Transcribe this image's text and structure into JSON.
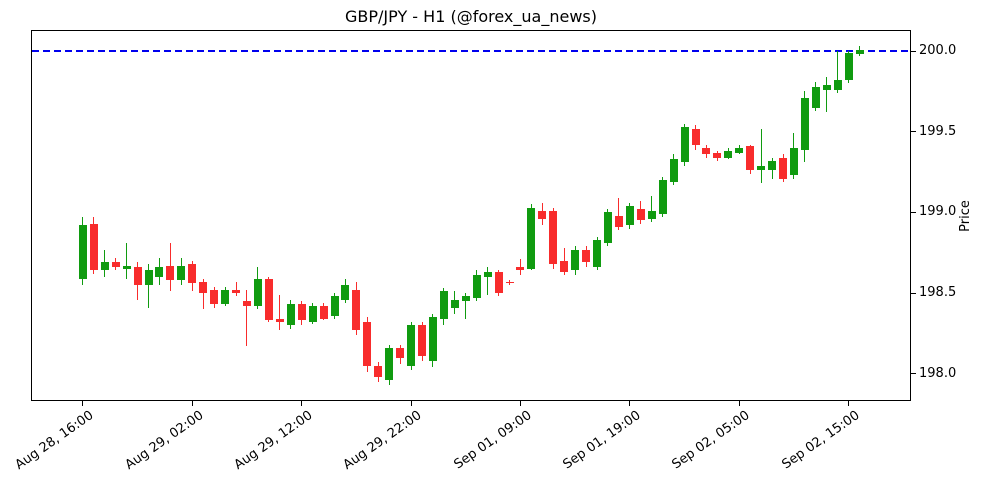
{
  "title": "GBP/JPY - H1 (@forex_ua_news)",
  "y_axis": {
    "label": "Price",
    "ticks": [
      "198.0",
      "198.5",
      "199.0",
      "199.5",
      "200.0"
    ],
    "min": 197.834,
    "max": 200.131
  },
  "x_axis": {
    "ticks": [
      {
        "i": 0,
        "label": "Aug 28, 16:00"
      },
      {
        "i": 10,
        "label": "Aug 29, 02:00"
      },
      {
        "i": 20,
        "label": "Aug 29, 12:00"
      },
      {
        "i": 30,
        "label": "Aug 29, 22:00"
      },
      {
        "i": 40,
        "label": "Sep 01, 09:00"
      },
      {
        "i": 50,
        "label": "Sep 01, 19:00"
      },
      {
        "i": 60,
        "label": "Sep 02, 05:00"
      },
      {
        "i": 70,
        "label": "Sep 02, 15:00"
      }
    ],
    "min": -4.7,
    "max": 75.7
  },
  "hline": {
    "value": 200.0,
    "color": "#0000ee",
    "style": "dashed"
  },
  "colors": {
    "up": "#109b10",
    "down": "#f82c2c",
    "spine": "#000000"
  },
  "chart_data": {
    "type": "candlestick",
    "title": "GBP/JPY - H1 (@forex_ua_news)",
    "ylabel": "Price",
    "timeframe": "H1",
    "grid": false,
    "hline": 200.0,
    "ylim": [
      197.834,
      200.131
    ],
    "x": [
      "Aug 28 16:00",
      "Aug 28 17:00",
      "Aug 28 18:00",
      "Aug 28 19:00",
      "Aug 28 20:00",
      "Aug 28 21:00",
      "Aug 28 22:00",
      "Aug 28 23:00",
      "Aug 29 00:00",
      "Aug 29 01:00",
      "Aug 29 02:00",
      "Aug 29 03:00",
      "Aug 29 04:00",
      "Aug 29 05:00",
      "Aug 29 06:00",
      "Aug 29 07:00",
      "Aug 29 08:00",
      "Aug 29 09:00",
      "Aug 29 10:00",
      "Aug 29 11:00",
      "Aug 29 12:00",
      "Aug 29 13:00",
      "Aug 29 14:00",
      "Aug 29 15:00",
      "Aug 29 16:00",
      "Aug 29 17:00",
      "Aug 29 18:00",
      "Aug 29 19:00",
      "Aug 29 20:00",
      "Aug 29 21:00",
      "Aug 29 22:00",
      "Sep 01 00:00",
      "Sep 01 01:00",
      "Sep 01 02:00",
      "Sep 01 03:00",
      "Sep 01 04:00",
      "Sep 01 05:00",
      "Sep 01 06:00",
      "Sep 01 07:00",
      "Sep 01 08:00",
      "Sep 01 09:00",
      "Sep 01 10:00",
      "Sep 01 11:00",
      "Sep 01 12:00",
      "Sep 01 13:00",
      "Sep 01 14:00",
      "Sep 01 15:00",
      "Sep 01 16:00",
      "Sep 01 17:00",
      "Sep 01 18:00",
      "Sep 01 19:00",
      "Sep 01 20:00",
      "Sep 01 21:00",
      "Sep 01 22:00",
      "Sep 01 23:00",
      "Sep 02 00:00",
      "Sep 02 01:00",
      "Sep 02 02:00",
      "Sep 02 03:00",
      "Sep 02 04:00",
      "Sep 02 05:00",
      "Sep 02 06:00",
      "Sep 02 07:00",
      "Sep 02 08:00",
      "Sep 02 09:00",
      "Sep 02 10:00",
      "Sep 02 11:00",
      "Sep 02 12:00",
      "Sep 02 13:00",
      "Sep 02 14:00",
      "Sep 02 15:00",
      "Sep 02 16:00"
    ],
    "ohlc": [
      [
        198.59,
        198.97,
        198.55,
        198.92
      ],
      [
        198.93,
        198.97,
        198.62,
        198.64
      ],
      [
        198.64,
        198.77,
        198.6,
        198.69
      ],
      [
        198.69,
        198.72,
        198.64,
        198.66
      ],
      [
        198.65,
        198.81,
        198.59,
        198.67
      ],
      [
        198.66,
        198.69,
        198.46,
        198.55
      ],
      [
        198.55,
        198.68,
        198.41,
        198.64
      ],
      [
        198.6,
        198.72,
        198.55,
        198.66
      ],
      [
        198.67,
        198.81,
        198.51,
        198.58
      ],
      [
        198.58,
        198.72,
        198.55,
        198.67
      ],
      [
        198.68,
        198.7,
        198.51,
        198.56
      ],
      [
        198.57,
        198.59,
        198.4,
        198.5
      ],
      [
        198.52,
        198.54,
        198.41,
        198.43
      ],
      [
        198.43,
        198.54,
        198.42,
        198.52
      ],
      [
        198.52,
        198.57,
        198.48,
        198.5
      ],
      [
        198.45,
        198.52,
        198.17,
        198.42
      ],
      [
        198.42,
        198.66,
        198.4,
        198.59
      ],
      [
        198.59,
        198.6,
        198.32,
        198.33
      ],
      [
        198.34,
        198.49,
        198.27,
        198.32
      ],
      [
        198.3,
        198.46,
        198.28,
        198.43
      ],
      [
        198.43,
        198.45,
        198.3,
        198.33
      ],
      [
        198.32,
        198.44,
        198.31,
        198.42
      ],
      [
        198.42,
        198.44,
        198.33,
        198.34
      ],
      [
        198.36,
        198.5,
        198.34,
        198.48
      ],
      [
        198.46,
        198.59,
        198.44,
        198.55
      ],
      [
        198.52,
        198.57,
        198.24,
        198.27
      ],
      [
        198.32,
        198.35,
        198.01,
        198.05
      ],
      [
        198.05,
        198.07,
        197.95,
        197.98
      ],
      [
        197.96,
        198.18,
        197.93,
        198.16
      ],
      [
        198.16,
        198.18,
        198.06,
        198.1
      ],
      [
        198.05,
        198.32,
        198.02,
        198.3
      ],
      [
        198.3,
        198.32,
        198.08,
        198.11
      ],
      [
        198.08,
        198.37,
        198.04,
        198.35
      ],
      [
        198.34,
        198.53,
        198.3,
        198.51
      ],
      [
        198.41,
        198.51,
        198.37,
        198.46
      ],
      [
        198.45,
        198.5,
        198.34,
        198.48
      ],
      [
        198.47,
        198.64,
        198.45,
        198.61
      ],
      [
        198.6,
        198.66,
        198.49,
        198.63
      ],
      [
        198.63,
        198.64,
        198.48,
        198.5
      ],
      [
        198.57,
        198.58,
        198.55,
        198.56
      ],
      [
        198.66,
        198.71,
        198.61,
        198.64
      ],
      [
        198.65,
        199.05,
        198.64,
        199.03
      ],
      [
        199.01,
        199.06,
        198.92,
        198.96
      ],
      [
        199.01,
        199.03,
        198.65,
        198.68
      ],
      [
        198.7,
        198.78,
        198.61,
        198.63
      ],
      [
        198.64,
        198.79,
        198.61,
        198.77
      ],
      [
        198.77,
        198.79,
        198.66,
        198.69
      ],
      [
        198.66,
        198.85,
        198.64,
        198.83
      ],
      [
        198.81,
        199.02,
        198.79,
        199.0
      ],
      [
        198.98,
        199.09,
        198.89,
        198.91
      ],
      [
        198.92,
        199.06,
        198.9,
        199.04
      ],
      [
        199.02,
        199.07,
        198.93,
        198.95
      ],
      [
        198.96,
        199.1,
        198.94,
        199.01
      ],
      [
        198.99,
        199.22,
        198.97,
        199.2
      ],
      [
        199.19,
        199.36,
        199.17,
        199.33
      ],
      [
        199.31,
        199.55,
        199.29,
        199.53
      ],
      [
        199.52,
        199.54,
        199.39,
        199.42
      ],
      [
        199.4,
        199.42,
        199.34,
        199.36
      ],
      [
        199.37,
        199.38,
        199.32,
        199.34
      ],
      [
        199.34,
        199.4,
        199.33,
        199.38
      ],
      [
        199.37,
        199.42,
        199.36,
        199.4
      ],
      [
        199.41,
        199.42,
        199.24,
        199.26
      ],
      [
        199.26,
        199.52,
        199.18,
        199.29
      ],
      [
        199.26,
        199.34,
        199.21,
        199.32
      ],
      [
        199.34,
        199.36,
        199.19,
        199.21
      ],
      [
        199.23,
        199.49,
        199.21,
        199.4
      ],
      [
        199.39,
        199.75,
        199.31,
        199.71
      ],
      [
        199.65,
        199.81,
        199.63,
        199.78
      ],
      [
        199.76,
        199.84,
        199.62,
        199.79
      ],
      [
        199.76,
        200.0,
        199.74,
        199.82
      ],
      [
        199.82,
        200.0,
        199.8,
        199.99
      ],
      [
        199.98,
        200.03,
        199.97,
        200.01
      ]
    ]
  }
}
